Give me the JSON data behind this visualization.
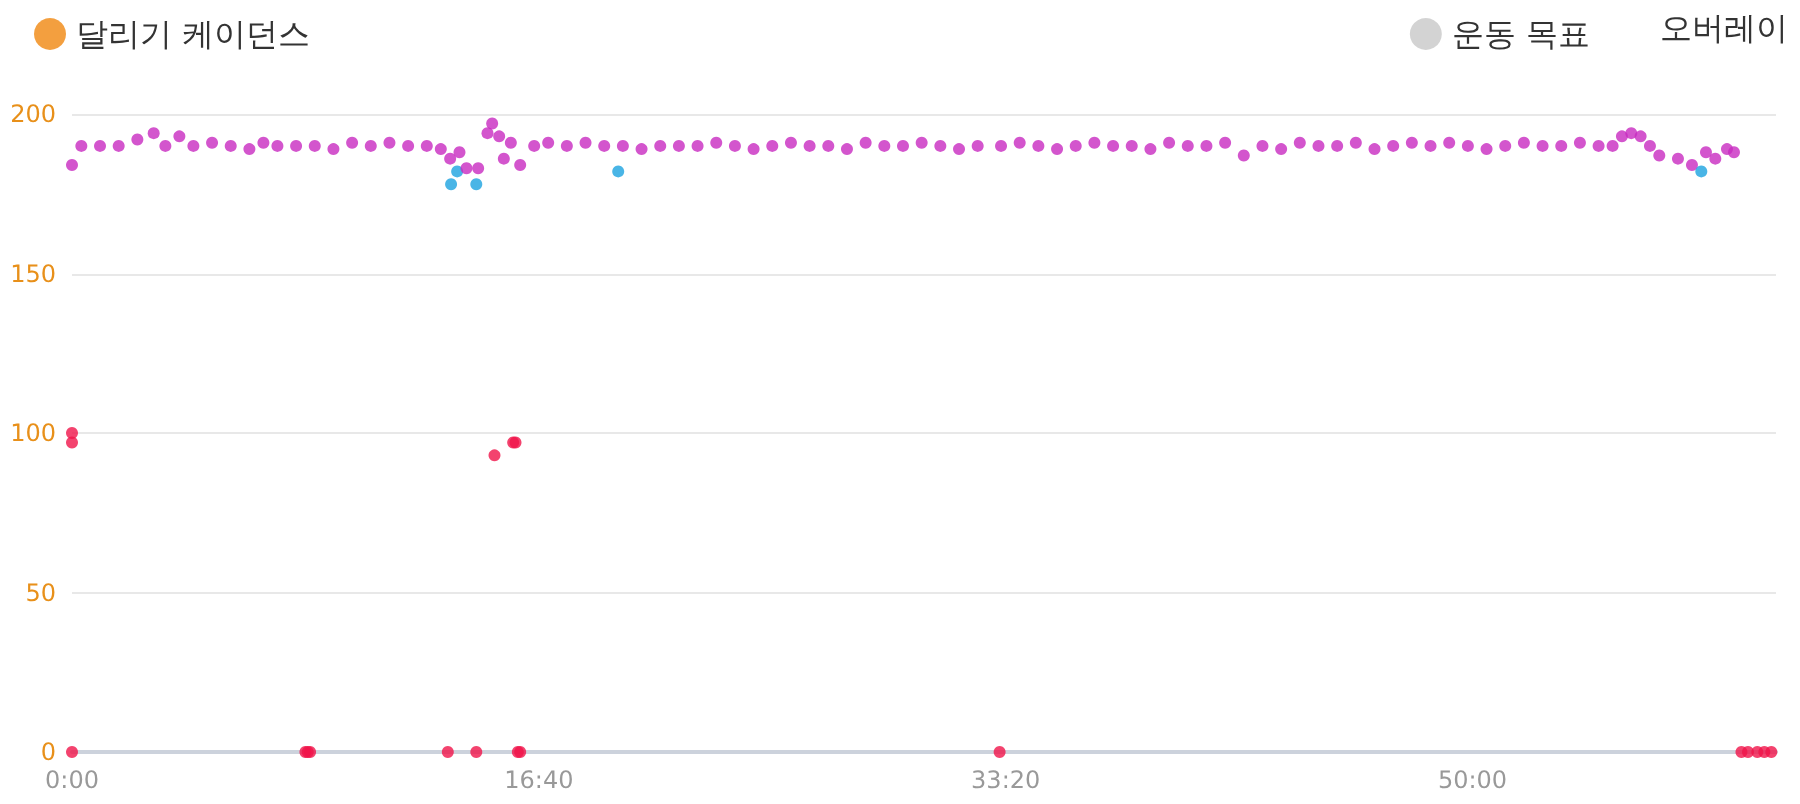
{
  "chart_data": {
    "type": "scatter",
    "legend": "top",
    "grid": "y",
    "marker": "circle",
    "xlim": [
      0,
      3650
    ],
    "ylim": [
      0,
      200
    ],
    "xticks": [
      {
        "value": 0,
        "label": "0:00"
      },
      {
        "value": 1000,
        "label": "16:40"
      },
      {
        "value": 2000,
        "label": "33:20"
      },
      {
        "value": 3000,
        "label": "50:00"
      }
    ],
    "yticks": [
      0,
      50,
      100,
      150,
      200
    ],
    "annotations": [
      "오버레이"
    ],
    "series": [
      {
        "name": "달리기 케이던스",
        "color": "#f0870f",
        "x": [
          0,
          0,
          0,
          0,
          20,
          60,
          100,
          140,
          175,
          200,
          230,
          260,
          300,
          340,
          380,
          410,
          440,
          480,
          500,
          505,
          510,
          520,
          560,
          600,
          640,
          680,
          720,
          760,
          790,
          805,
          810,
          812,
          825,
          830,
          845,
          866,
          870,
          866,
          890,
          900,
          905,
          915,
          925,
          940,
          945,
          950,
          955,
          960,
          960,
          990,
          1020,
          1060,
          1100,
          1140,
          1170,
          1180,
          1220,
          1260,
          1300,
          1340,
          1380,
          1420,
          1460,
          1500,
          1540,
          1580,
          1620,
          1660,
          1700,
          1740,
          1780,
          1820,
          1860,
          1900,
          1940,
          1987,
          1990,
          2030,
          2070,
          2110,
          2150,
          2190,
          2230,
          2270,
          2310,
          2350,
          2390,
          2430,
          2470,
          2510,
          2550,
          2590,
          2630,
          2670,
          2710,
          2750,
          2790,
          2830,
          2870,
          2910,
          2950,
          2990,
          3030,
          3070,
          3110,
          3150,
          3190,
          3230,
          3270,
          3300,
          3320,
          3340,
          3360,
          3380,
          3400,
          3440,
          3470,
          3490,
          3500,
          3520,
          3545,
          3560,
          3576,
          3590,
          3610,
          3625,
          3640
        ],
        "values": [
          0,
          97,
          100,
          184,
          190,
          190,
          190,
          192,
          194,
          190,
          193,
          190,
          191,
          190,
          189,
          191,
          190,
          190,
          0,
          0,
          0,
          190,
          189,
          191,
          190,
          191,
          190,
          190,
          189,
          0,
          186,
          178,
          182,
          188,
          183,
          0,
          183,
          178,
          194,
          197,
          93,
          193,
          186,
          191,
          97,
          97,
          0,
          0,
          184,
          190,
          191,
          190,
          191,
          190,
          182,
          190,
          189,
          190,
          190,
          190,
          191,
          190,
          189,
          190,
          191,
          190,
          190,
          189,
          191,
          190,
          190,
          191,
          190,
          189,
          190,
          0,
          190,
          191,
          190,
          189,
          190,
          191,
          190,
          190,
          189,
          191,
          190,
          190,
          191,
          187,
          190,
          189,
          191,
          190,
          190,
          191,
          189,
          190,
          191,
          190,
          191,
          190,
          189,
          190,
          191,
          190,
          190,
          191,
          190,
          190,
          193,
          194,
          193,
          190,
          187,
          186,
          184,
          182,
          188,
          186,
          189,
          188,
          0,
          0,
          0,
          0,
          0
        ],
        "colors": [
          "#f0144a",
          "#f0144a",
          "#f0144a",
          "#c82ac0",
          "#c82ac0",
          "#c82ac0",
          "#c82ac0",
          "#c82ac0",
          "#c82ac0",
          "#c82ac0",
          "#c82ac0",
          "#c82ac0",
          "#c82ac0",
          "#c82ac0",
          "#c82ac0",
          "#c82ac0",
          "#c82ac0",
          "#c82ac0",
          "#f0144a",
          "#f0144a",
          "#f0144a",
          "#c82ac0",
          "#c82ac0",
          "#c82ac0",
          "#c82ac0",
          "#c82ac0",
          "#c82ac0",
          "#c82ac0",
          "#c82ac0",
          "#f0144a",
          "#c82ac0",
          "#1ba3e0",
          "#1ba3e0",
          "#c82ac0",
          "#c82ac0",
          "#f0144a",
          "#c82ac0",
          "#1ba3e0",
          "#c82ac0",
          "#c82ac0",
          "#f0144a",
          "#c82ac0",
          "#c82ac0",
          "#c82ac0",
          "#f0144a",
          "#f0144a",
          "#f0144a",
          "#f0144a",
          "#c82ac0",
          "#c82ac0",
          "#c82ac0",
          "#c82ac0",
          "#c82ac0",
          "#c82ac0",
          "#1ba3e0",
          "#c82ac0",
          "#c82ac0",
          "#c82ac0",
          "#c82ac0",
          "#c82ac0",
          "#c82ac0",
          "#c82ac0",
          "#c82ac0",
          "#c82ac0",
          "#c82ac0",
          "#c82ac0",
          "#c82ac0",
          "#c82ac0",
          "#c82ac0",
          "#c82ac0",
          "#c82ac0",
          "#c82ac0",
          "#c82ac0",
          "#c82ac0",
          "#c82ac0",
          "#f0144a",
          "#c82ac0",
          "#c82ac0",
          "#c82ac0",
          "#c82ac0",
          "#c82ac0",
          "#c82ac0",
          "#c82ac0",
          "#c82ac0",
          "#c82ac0",
          "#c82ac0",
          "#c82ac0",
          "#c82ac0",
          "#c82ac0",
          "#c82ac0",
          "#c82ac0",
          "#c82ac0",
          "#c82ac0",
          "#c82ac0",
          "#c82ac0",
          "#c82ac0",
          "#c82ac0",
          "#c82ac0",
          "#c82ac0",
          "#c82ac0",
          "#c82ac0",
          "#c82ac0",
          "#c82ac0",
          "#c82ac0",
          "#c82ac0",
          "#c82ac0",
          "#c82ac0",
          "#c82ac0",
          "#c82ac0",
          "#c82ac0",
          "#c82ac0",
          "#c82ac0",
          "#c82ac0",
          "#c82ac0",
          "#c82ac0",
          "#c82ac0",
          "#c82ac0",
          "#1ba3e0",
          "#c82ac0",
          "#c82ac0",
          "#c82ac0",
          "#c82ac0",
          "#f0144a",
          "#f0144a",
          "#f0144a",
          "#f0144a",
          "#f0144a"
        ]
      },
      {
        "name": "운동 목표",
        "color": "#c8c8c8"
      }
    ]
  }
}
